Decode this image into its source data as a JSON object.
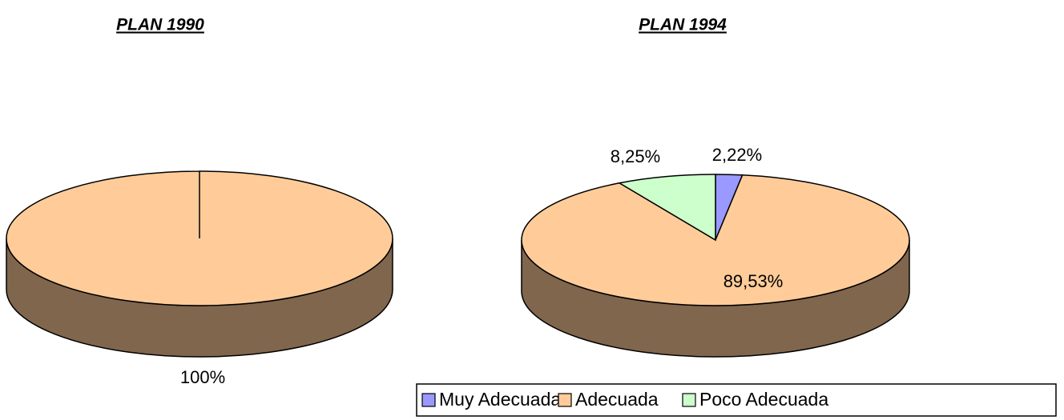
{
  "chart_data": [
    {
      "type": "pie",
      "title": "PLAN 1990",
      "values": [
        100
      ],
      "value_labels": [
        "100%"
      ],
      "colors": [
        "#ffcc99"
      ]
    },
    {
      "type": "pie",
      "title": "PLAN 1994",
      "categories": [
        "Muy Adecuada",
        "Adecuada",
        "Poco Adecuada"
      ],
      "values": [
        2.22,
        89.53,
        8.25
      ],
      "value_labels": [
        "2,22%",
        "89,53%",
        "8,25%"
      ],
      "colors": [
        "#9999ff",
        "#ffcc99",
        "#ccffcc"
      ],
      "legend": "bottom"
    }
  ]
}
